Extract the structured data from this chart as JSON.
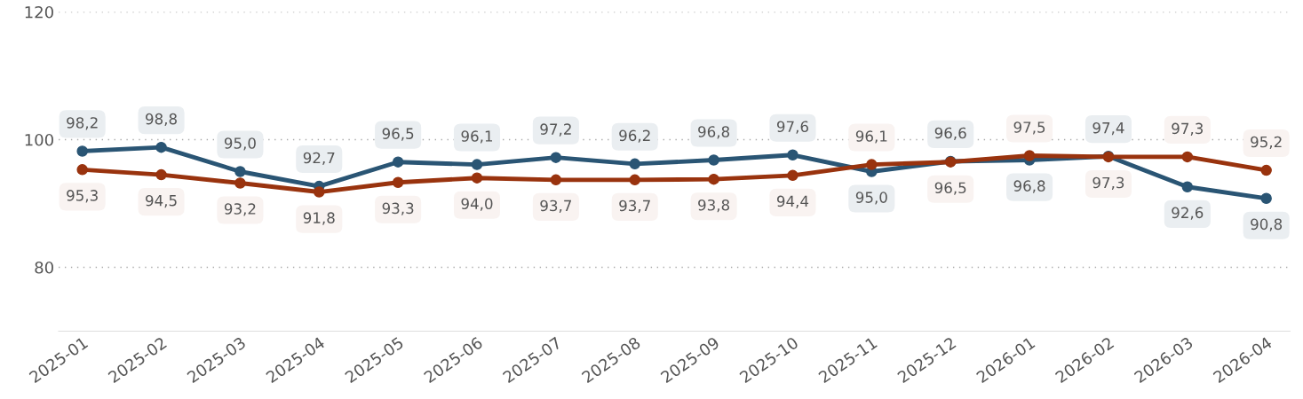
{
  "chart_data": {
    "type": "line",
    "categories": [
      "2025-01",
      "2025-02",
      "2025-03",
      "2025-04",
      "2025-05",
      "2025-06",
      "2025-07",
      "2025-08",
      "2025-09",
      "2025-10",
      "2025-11",
      "2025-12",
      "2026-01",
      "2026-02",
      "2026-03",
      "2026-04"
    ],
    "series": [
      {
        "color": "#2a5574",
        "values": [
          98.2,
          98.8,
          95.0,
          92.7,
          96.5,
          96.1,
          97.2,
          96.2,
          96.8,
          97.6,
          95.0,
          96.6,
          96.8,
          97.4,
          92.6,
          90.8
        ],
        "value_labels": [
          "98,2",
          "98,8",
          "95,0",
          "92,7",
          "96,5",
          "96,1",
          "97,2",
          "96,2",
          "96,8",
          "97,6",
          "95,0",
          "96,6",
          "96,8",
          "97,4",
          "92,6",
          "90,8"
        ]
      },
      {
        "color": "#99330e",
        "values": [
          95.3,
          94.5,
          93.2,
          91.8,
          93.3,
          94.0,
          93.7,
          93.7,
          93.8,
          94.4,
          96.1,
          96.5,
          97.5,
          97.3,
          97.3,
          95.2
        ],
        "value_labels": [
          "95,3",
          "94,5",
          "93,2",
          "91,8",
          "93,3",
          "94,0",
          "93,7",
          "93,7",
          "93,8",
          "94,4",
          "96,1",
          "96,5",
          "97,5",
          "97,3",
          "97,3",
          "95,2"
        ]
      }
    ],
    "ylim": [
      70,
      120
    ],
    "yticks": [
      80,
      100,
      120
    ],
    "grid": "y",
    "marker": "circle",
    "line_style": "solid"
  }
}
